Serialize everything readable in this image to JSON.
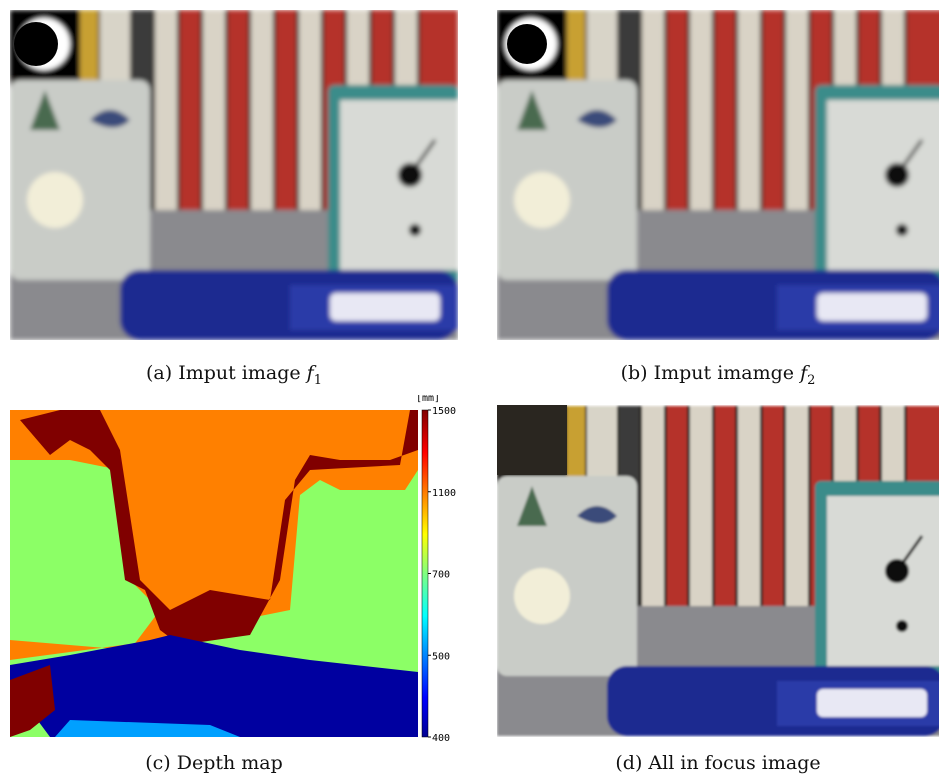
{
  "panels": [
    {
      "caption": {
        "label": "(a) Imput image",
        "var": "f",
        "sub": "1"
      }
    },
    {
      "caption": {
        "label": "(b) Imput imamge",
        "var": "f",
        "sub": "2"
      }
    },
    {
      "caption": {
        "label": "(c) Depth map"
      }
    },
    {
      "caption": {
        "label": "(d) All in focus image"
      }
    }
  ],
  "colorbar": {
    "unit": "[mm]",
    "ticks": [
      1500,
      1100,
      700,
      500,
      400
    ]
  }
}
